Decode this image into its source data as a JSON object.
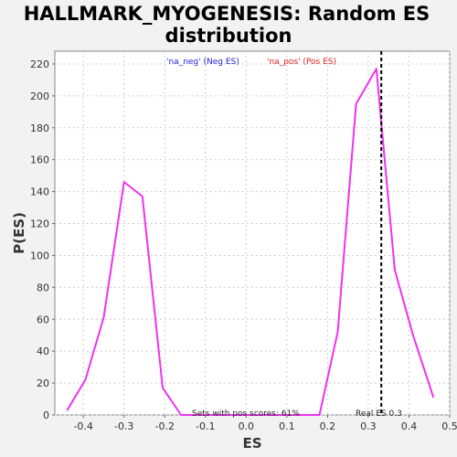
{
  "chart_data": {
    "type": "line",
    "title_line1": "HALLMARK_MYOGENESIS: Random ES",
    "title_line2": "distribution",
    "xlabel": "ES",
    "ylabel": "P(ES)",
    "xlim": [
      -0.47,
      0.5
    ],
    "ylim": [
      0,
      228
    ],
    "x_ticks": [
      -0.4,
      -0.3,
      -0.2,
      -0.1,
      0.0,
      0.1,
      0.2,
      0.3,
      0.4,
      0.5
    ],
    "x_tick_labels": [
      "-0.4",
      "-0.3",
      "-0.2",
      "-0.1",
      "0.0",
      "0.1",
      "0.2",
      "0.3",
      "0.4",
      "0.5"
    ],
    "y_ticks": [
      0,
      20,
      40,
      60,
      80,
      100,
      120,
      140,
      160,
      180,
      200,
      220
    ],
    "y_tick_labels": [
      "0",
      "20",
      "40",
      "60",
      "80",
      "100",
      "120",
      "140",
      "160",
      "180",
      "200",
      "220"
    ],
    "grid": true,
    "series": [
      {
        "color": "#ee33ee",
        "x": [
          -0.44,
          -0.395,
          -0.35,
          -0.3,
          -0.255,
          -0.205,
          -0.16,
          -0.115,
          -0.07,
          -0.025,
          0.02,
          0.065,
          0.11,
          0.155,
          0.18,
          0.225,
          0.27,
          0.32,
          0.365,
          0.41,
          0.46
        ],
        "y": [
          3,
          22,
          61,
          146,
          137,
          17,
          0,
          0,
          0,
          0,
          0,
          0,
          0,
          0,
          0,
          52,
          195,
          217,
          91,
          50,
          11
        ]
      }
    ],
    "legend": {
      "neg_label": "'na_neg' (Neg ES)",
      "pos_label": "'na_pos' (Pos ES)",
      "neg_color": "#2222dd",
      "pos_color": "#dd2222"
    },
    "real_es": {
      "value": 0.332,
      "label": "Real ES 0.3",
      "line_color": "#000000"
    },
    "annotation": "Sets with pos scores: 61%"
  }
}
